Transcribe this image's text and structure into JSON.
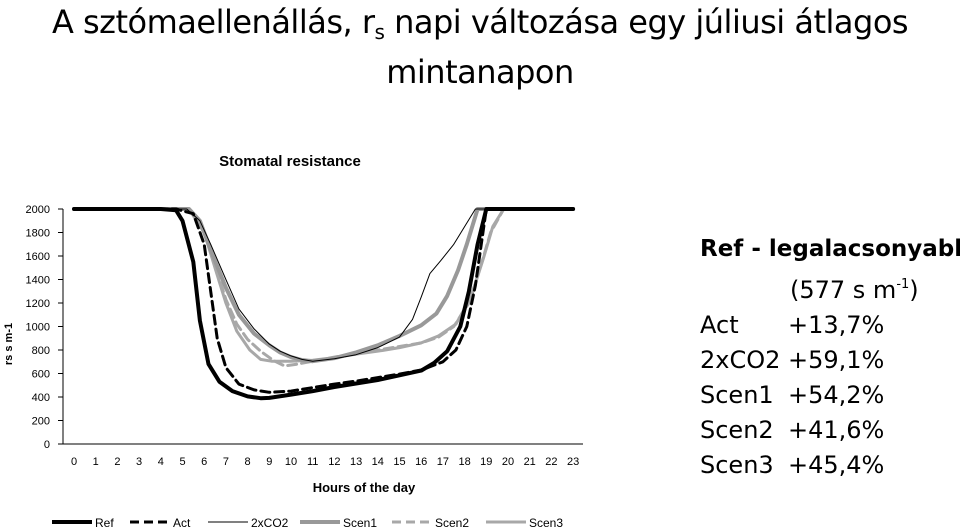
{
  "slide": {
    "title_main": "A sztómaellenállás, r",
    "title_sub": "s",
    "title_rest": " napi változása egy júliusi átlagos",
    "title_line2": "mintanapon"
  },
  "side_panel": {
    "header": "Ref - legalacsonyabb",
    "unit_open": "(577 s m",
    "unit_sup": "-1",
    "unit_close": ")",
    "rows": [
      {
        "name": "Act",
        "value": "+13,7%"
      },
      {
        "name": "2xCO2",
        "value": "+59,1%"
      },
      {
        "name": "Scen1",
        "value": "+54,2%"
      },
      {
        "name": "Scen2",
        "value": "+41,6%"
      },
      {
        "name": "Scen3",
        "value": "+45,4%"
      }
    ]
  },
  "chart_data": {
    "type": "line",
    "title": "Stomatal resistance",
    "xlabel": "Hours of the day",
    "ylabel": "rs s m-1",
    "x": [
      0,
      1,
      2,
      3,
      4,
      5,
      6,
      7,
      8,
      9,
      10,
      11,
      12,
      13,
      14,
      15,
      16,
      17,
      18,
      19,
      20,
      21,
      22,
      23
    ],
    "ylim": [
      0,
      2000
    ],
    "yticks": [
      0,
      200,
      400,
      600,
      800,
      1000,
      1200,
      1400,
      1600,
      1800,
      2000
    ],
    "grid": false,
    "legend_position": "bottom",
    "series": [
      {
        "name": "Ref",
        "color": "#000000",
        "width": 4,
        "dash": "",
        "points": [
          [
            0,
            2000
          ],
          [
            4,
            2000
          ],
          [
            4.7,
            1990
          ],
          [
            5,
            1900
          ],
          [
            5.5,
            1550
          ],
          [
            5.8,
            1050
          ],
          [
            6.2,
            680
          ],
          [
            6.7,
            530
          ],
          [
            7.3,
            450
          ],
          [
            8,
            405
          ],
          [
            8.6,
            390
          ],
          [
            9,
            392
          ],
          [
            10,
            420
          ],
          [
            11,
            450
          ],
          [
            12,
            485
          ],
          [
            13,
            515
          ],
          [
            14,
            545
          ],
          [
            15,
            585
          ],
          [
            16,
            625
          ],
          [
            16.6,
            690
          ],
          [
            17.2,
            790
          ],
          [
            17.8,
            1000
          ],
          [
            18.2,
            1300
          ],
          [
            18.6,
            1700
          ],
          [
            19,
            2000
          ],
          [
            23,
            2000
          ]
        ]
      },
      {
        "name": "Act",
        "color": "#000000",
        "width": 3,
        "dash": "9,5",
        "points": [
          [
            0,
            2000
          ],
          [
            4.7,
            2000
          ],
          [
            5.5,
            1960
          ],
          [
            6,
            1700
          ],
          [
            6.3,
            1300
          ],
          [
            6.6,
            900
          ],
          [
            7,
            650
          ],
          [
            7.6,
            510
          ],
          [
            8.3,
            460
          ],
          [
            9,
            440
          ],
          [
            10,
            450
          ],
          [
            11,
            480
          ],
          [
            12,
            510
          ],
          [
            13,
            535
          ],
          [
            14,
            565
          ],
          [
            15,
            595
          ],
          [
            16,
            630
          ],
          [
            17,
            700
          ],
          [
            17.6,
            800
          ],
          [
            18.1,
            1000
          ],
          [
            18.5,
            1350
          ],
          [
            19,
            2000
          ],
          [
            23,
            2000
          ]
        ]
      },
      {
        "name": "2xCO2",
        "color": "#000000",
        "width": 1,
        "dash": "",
        "points": [
          [
            0,
            2000
          ],
          [
            5.2,
            2000
          ],
          [
            5.8,
            1900
          ],
          [
            6.3,
            1700
          ],
          [
            7,
            1400
          ],
          [
            7.6,
            1150
          ],
          [
            8.3,
            980
          ],
          [
            9,
            850
          ],
          [
            9.5,
            790
          ],
          [
            10,
            750
          ],
          [
            10.5,
            720
          ],
          [
            11,
            705
          ],
          [
            12,
            725
          ],
          [
            13,
            760
          ],
          [
            14,
            820
          ],
          [
            15,
            910
          ],
          [
            15.6,
            1060
          ],
          [
            16,
            1250
          ],
          [
            16.4,
            1450
          ],
          [
            16.9,
            1560
          ],
          [
            17.5,
            1700
          ],
          [
            18,
            1850
          ],
          [
            18.5,
            2000
          ],
          [
            23,
            2000
          ]
        ]
      },
      {
        "name": "Scen1",
        "color": "#999999",
        "width": 4,
        "dash": "",
        "points": [
          [
            0,
            2000
          ],
          [
            5.3,
            2000
          ],
          [
            5.8,
            1900
          ],
          [
            6.3,
            1650
          ],
          [
            7,
            1330
          ],
          [
            7.6,
            1100
          ],
          [
            8.3,
            940
          ],
          [
            9,
            840
          ],
          [
            9.5,
            780
          ],
          [
            10,
            740
          ],
          [
            10.5,
            715
          ],
          [
            11,
            705
          ],
          [
            12,
            730
          ],
          [
            13,
            780
          ],
          [
            14,
            840
          ],
          [
            15,
            920
          ],
          [
            16,
            1010
          ],
          [
            16.7,
            1110
          ],
          [
            17.2,
            1260
          ],
          [
            17.7,
            1480
          ],
          [
            18.1,
            1700
          ],
          [
            18.6,
            2000
          ],
          [
            23,
            2000
          ]
        ]
      },
      {
        "name": "Scen2",
        "color": "#a8a8a8",
        "width": 3,
        "dash": "9,5",
        "points": [
          [
            0,
            2000
          ],
          [
            5.3,
            2000
          ],
          [
            6,
            1800
          ],
          [
            6.5,
            1520
          ],
          [
            7,
            1230
          ],
          [
            7.5,
            1020
          ],
          [
            8,
            890
          ],
          [
            8.6,
            790
          ],
          [
            9.2,
            710
          ],
          [
            9.7,
            665
          ],
          [
            10.3,
            680
          ],
          [
            11,
            705
          ],
          [
            12,
            740
          ],
          [
            13,
            770
          ],
          [
            14,
            800
          ],
          [
            15,
            830
          ],
          [
            16,
            860
          ],
          [
            16.8,
            910
          ],
          [
            17.5,
            1000
          ],
          [
            18.2,
            1200
          ],
          [
            18.8,
            1550
          ],
          [
            19.2,
            1800
          ],
          [
            19.8,
            2000
          ],
          [
            23,
            2000
          ]
        ]
      },
      {
        "name": "Scen3",
        "color": "#a8a8a8",
        "width": 3,
        "dash": "",
        "points": [
          [
            0,
            2000
          ],
          [
            5.3,
            2000
          ],
          [
            6,
            1800
          ],
          [
            6.5,
            1500
          ],
          [
            7,
            1200
          ],
          [
            7.5,
            960
          ],
          [
            8.1,
            800
          ],
          [
            8.6,
            720
          ],
          [
            9.1,
            705
          ],
          [
            10,
            705
          ],
          [
            11,
            712
          ],
          [
            12,
            735
          ],
          [
            13,
            765
          ],
          [
            14,
            790
          ],
          [
            15,
            820
          ],
          [
            16,
            860
          ],
          [
            16.8,
            920
          ],
          [
            17.6,
            1020
          ],
          [
            18.3,
            1250
          ],
          [
            18.9,
            1600
          ],
          [
            19.3,
            1850
          ],
          [
            19.8,
            2000
          ],
          [
            23,
            2000
          ]
        ]
      }
    ]
  }
}
